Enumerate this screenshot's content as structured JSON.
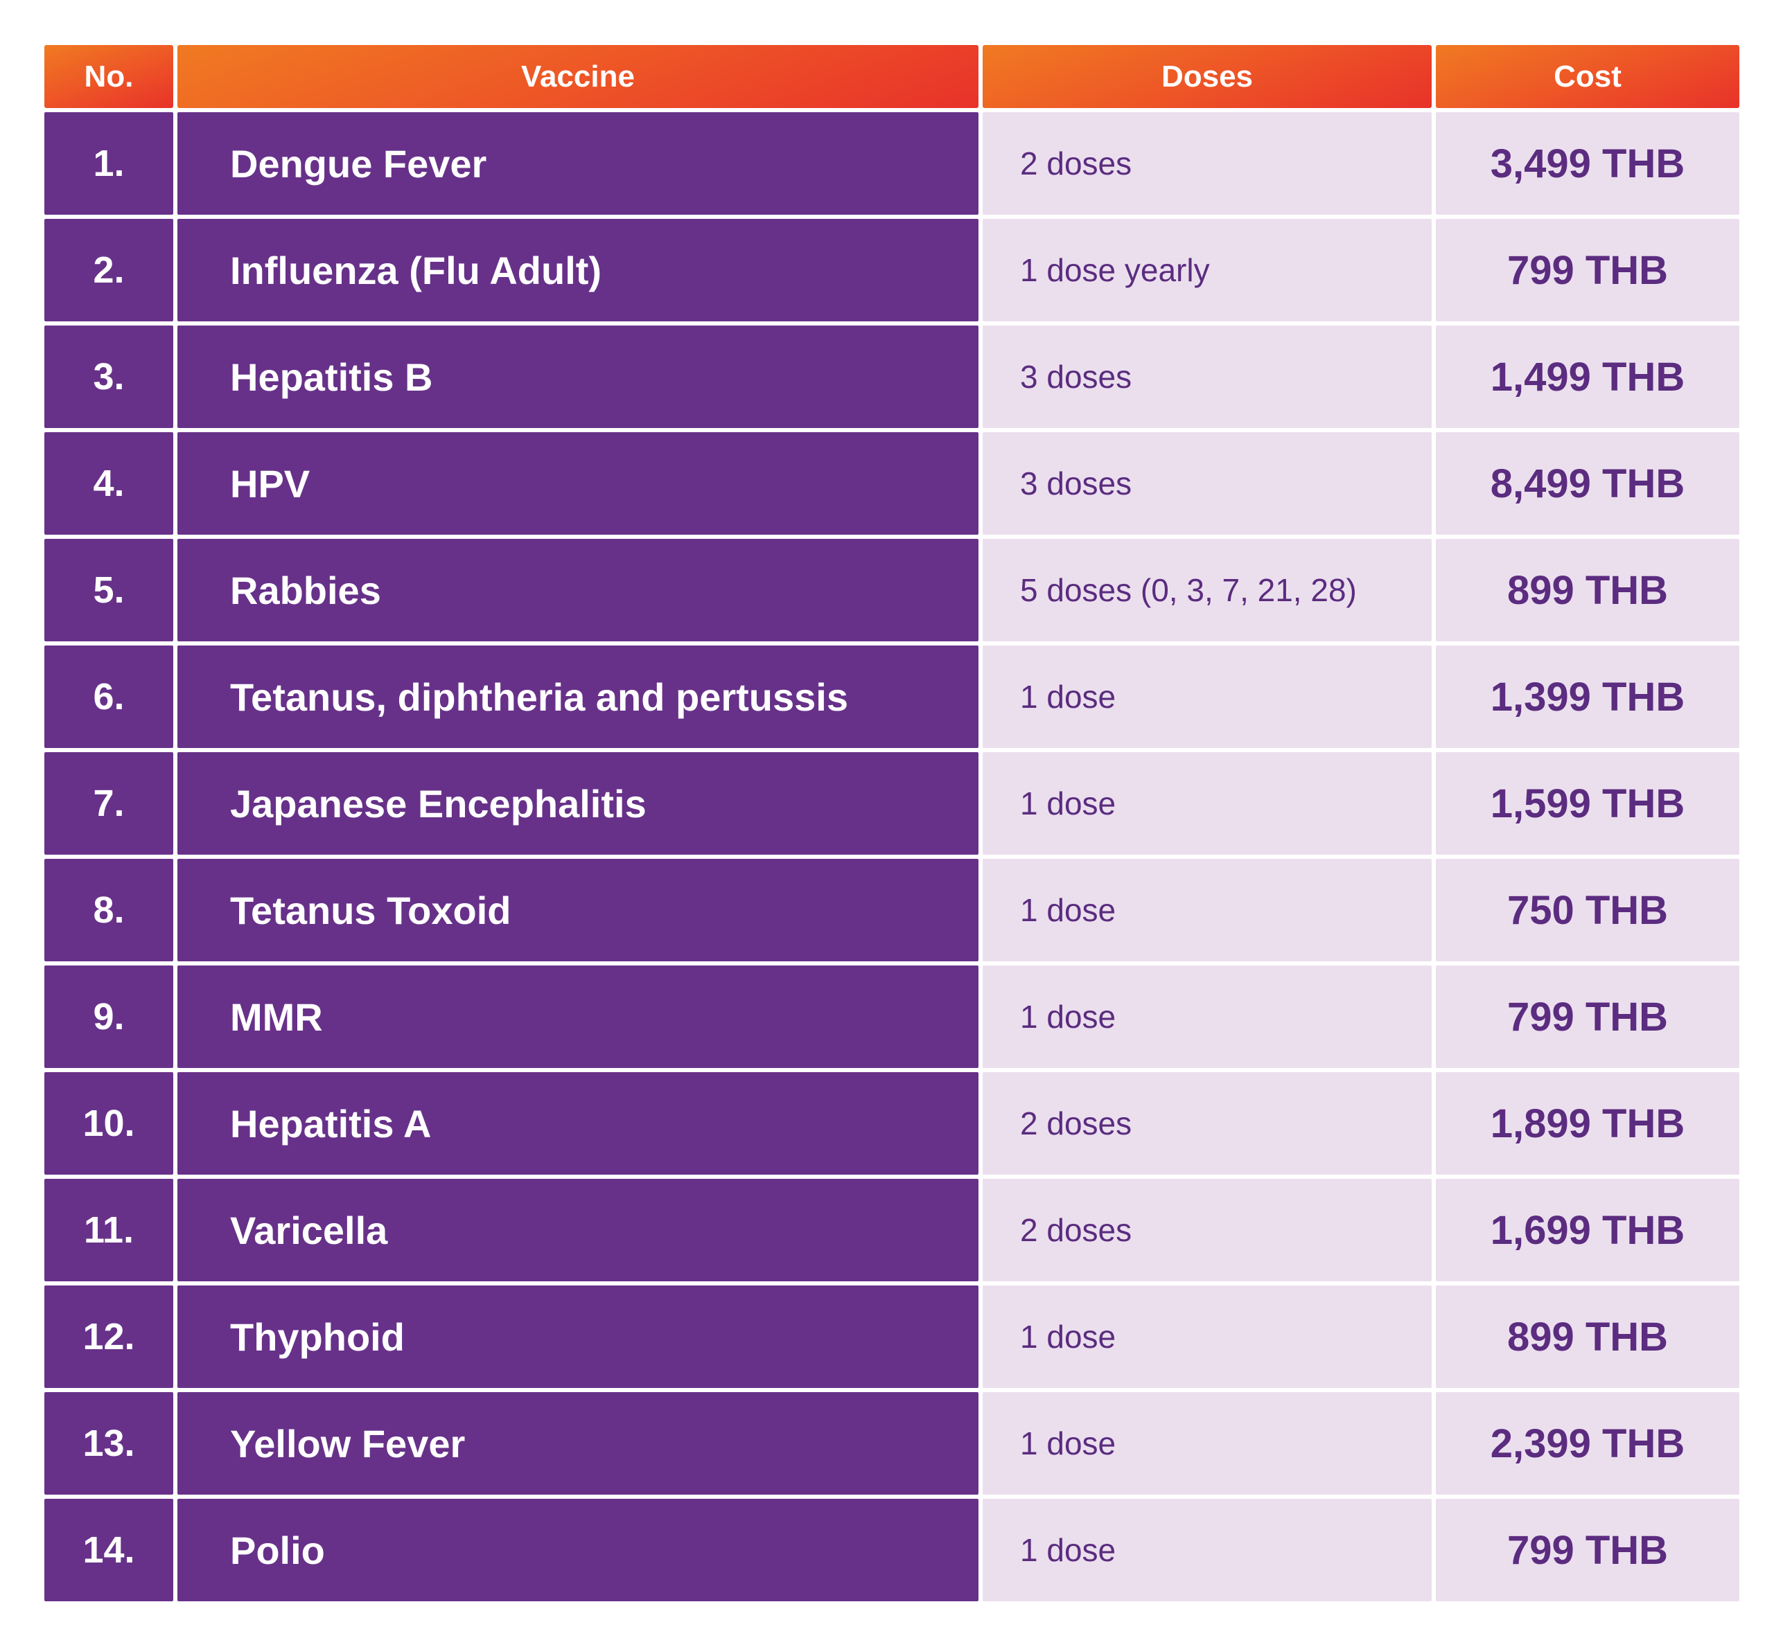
{
  "headers": {
    "no": "No.",
    "vaccine": "Vaccine",
    "doses": "Doses",
    "cost": "Cost"
  },
  "rows": [
    {
      "no": "1.",
      "vaccine": "Dengue Fever",
      "doses": "2 doses",
      "cost": "3,499 THB"
    },
    {
      "no": "2.",
      "vaccine": "Influenza (Flu Adult)",
      "doses": "1 dose yearly",
      "cost": "799 THB"
    },
    {
      "no": "3.",
      "vaccine": "Hepatitis B",
      "doses": "3 doses",
      "cost": "1,499 THB"
    },
    {
      "no": "4.",
      "vaccine": "HPV",
      "doses": "3 doses",
      "cost": "8,499 THB"
    },
    {
      "no": "5.",
      "vaccine": "Rabbies",
      "doses": "5 doses (0, 3, 7, 21, 28)",
      "cost": "899 THB"
    },
    {
      "no": "6.",
      "vaccine": "Tetanus, diphtheria and pertussis",
      "doses": "1 dose",
      "cost": "1,399 THB"
    },
    {
      "no": "7.",
      "vaccine": "Japanese Encephalitis",
      "doses": "1 dose",
      "cost": "1,599 THB"
    },
    {
      "no": "8.",
      "vaccine": "Tetanus Toxoid",
      "doses": "1 dose",
      "cost": "750 THB"
    },
    {
      "no": "9.",
      "vaccine": "MMR",
      "doses": "1 dose",
      "cost": "799 THB"
    },
    {
      "no": "10.",
      "vaccine": "Hepatitis A",
      "doses": "2 doses",
      "cost": "1,899 THB"
    },
    {
      "no": "11.",
      "vaccine": "Varicella",
      "doses": "2 doses",
      "cost": "1,699 THB"
    },
    {
      "no": "12.",
      "vaccine": "Thyphoid",
      "doses": "1 dose",
      "cost": "899 THB"
    },
    {
      "no": "13.",
      "vaccine": "Yellow Fever",
      "doses": "1 dose",
      "cost": "2,399 THB"
    },
    {
      "no": "14.",
      "vaccine": "Polio",
      "doses": "1 dose",
      "cost": "799 THB"
    }
  ],
  "colors": {
    "header_gradient_start": "#f07a22",
    "header_gradient_end": "#e8322a",
    "purple": "#673189",
    "lavender": "#ebdfee",
    "text_purple": "#5b2c7f"
  }
}
